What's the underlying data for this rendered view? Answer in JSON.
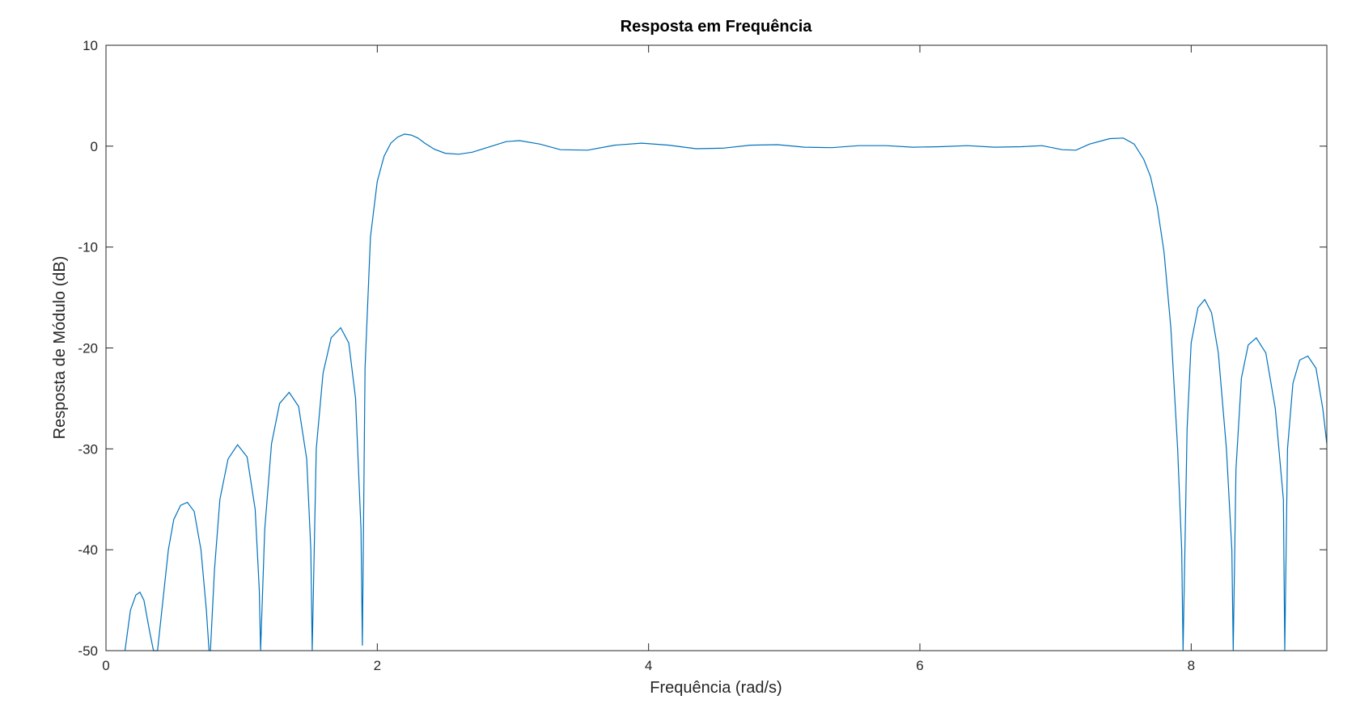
{
  "chart_data": {
    "type": "line",
    "title": "Resposta em Frequência",
    "xlabel": "Frequência (rad/s)",
    "ylabel": "Resposta de Módulo (dB)",
    "xlim": [
      0,
      9.0
    ],
    "ylim": [
      -50,
      10
    ],
    "xticks": [
      0,
      2,
      4,
      6,
      8
    ],
    "yticks": [
      -50,
      -40,
      -30,
      -20,
      -10,
      0,
      10
    ],
    "grid": false,
    "series_color": "#0072bd",
    "series": [
      {
        "x": [
          0.14,
          0.18,
          0.22,
          0.25,
          0.28,
          0.32,
          0.35,
          0.38,
          0.42,
          0.46,
          0.5,
          0.55,
          0.6,
          0.65,
          0.7,
          0.74,
          0.76,
          0.77,
          0.8,
          0.84,
          0.9,
          0.97,
          1.04,
          1.1,
          1.13,
          1.14,
          1.17,
          1.22,
          1.28,
          1.35,
          1.42,
          1.48,
          1.51,
          1.52,
          1.55,
          1.6,
          1.66,
          1.73,
          1.79,
          1.84,
          1.88,
          1.89,
          1.91,
          1.95,
          2.0,
          2.05,
          2.1,
          2.15,
          2.2,
          2.25,
          2.3,
          2.35,
          2.42,
          2.5,
          2.6,
          2.7,
          2.82,
          2.95,
          3.05,
          3.2,
          3.35,
          3.55,
          3.75,
          3.95,
          4.15,
          4.35,
          4.55,
          4.75,
          4.95,
          5.15,
          5.35,
          5.55,
          5.75,
          5.95,
          6.15,
          6.35,
          6.55,
          6.75,
          6.9,
          7.05,
          7.15,
          7.25,
          7.4,
          7.5,
          7.58,
          7.65,
          7.7,
          7.75,
          7.8,
          7.85,
          7.9,
          7.93,
          7.94,
          7.97,
          8.0,
          8.05,
          8.1,
          8.15,
          8.2,
          8.26,
          8.3,
          8.31,
          8.33,
          8.37,
          8.42,
          8.48,
          8.55,
          8.62,
          8.68,
          8.69,
          8.71,
          8.75,
          8.8,
          8.86,
          8.92,
          8.97,
          9.0
        ],
        "y": [
          -50,
          -46,
          -44.5,
          -44.2,
          -45,
          -48,
          -50,
          -50,
          -45,
          -40,
          -37,
          -35.6,
          -35.3,
          -36.2,
          -40,
          -46,
          -50,
          -50,
          -42,
          -35,
          -31,
          -29.6,
          -30.8,
          -36,
          -44,
          -50,
          -38,
          -29.5,
          -25.5,
          -24.4,
          -25.8,
          -31,
          -40,
          -50,
          -30,
          -22.5,
          -19,
          -18,
          -19.5,
          -25,
          -38,
          -49.5,
          -22,
          -9,
          -3.5,
          -1,
          0.3,
          0.9,
          1.2,
          1.1,
          0.8,
          0.3,
          -0.3,
          -0.7,
          -0.8,
          -0.6,
          -0.1,
          0.45,
          0.55,
          0.2,
          -0.35,
          -0.4,
          0.1,
          0.3,
          0.1,
          -0.25,
          -0.2,
          0.1,
          0.15,
          -0.1,
          -0.15,
          0.05,
          0.05,
          -0.1,
          -0.05,
          0.05,
          -0.1,
          -0.05,
          0.05,
          -0.35,
          -0.4,
          0.2,
          0.75,
          0.8,
          0.2,
          -1.3,
          -3,
          -6,
          -10.5,
          -18,
          -30,
          -40,
          -50,
          -28,
          -19.5,
          -16,
          -15.2,
          -16.5,
          -20.5,
          -30,
          -40,
          -50,
          -32,
          -23,
          -19.7,
          -19,
          -20.5,
          -26,
          -35,
          -50,
          -30,
          -23.5,
          -21.2,
          -20.8,
          -22,
          -26,
          -29.5
        ]
      }
    ]
  }
}
